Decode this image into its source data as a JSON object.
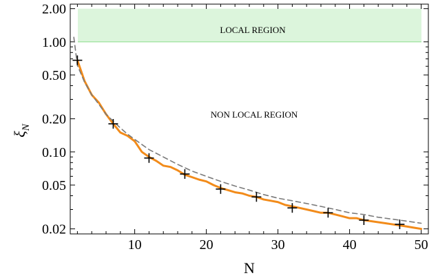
{
  "chart_data": {
    "type": "line",
    "title": "",
    "xlabel": "N",
    "ylabel_symbol": "ξ",
    "ylabel_subscript": "N",
    "x_scale": "linear",
    "y_scale": "log",
    "xlim": [
      1,
      51
    ],
    "ylim": [
      0.018,
      2.2
    ],
    "x_ticks": [
      10,
      20,
      30,
      40,
      50
    ],
    "y_ticks": [
      0.02,
      0.05,
      0.1,
      0.2,
      0.5,
      1.0,
      2.0
    ],
    "y_tick_labels": [
      "0.02",
      "0.05",
      "0.10",
      "0.20",
      "0.50",
      "1.00",
      "2.00"
    ],
    "x_tick_labels": [
      "10",
      "20",
      "30",
      "40",
      "50"
    ],
    "regions": [
      {
        "label": "LOCAL REGION",
        "y_from": 1.0,
        "y_to": 2.0,
        "color": "#dcf5dc",
        "edge_color": "#a8e6a8"
      },
      {
        "label": "NON LOCAL REGION",
        "y_from": 0.018,
        "y_to": 1.0
      }
    ],
    "series": [
      {
        "style": "solid",
        "color": "#f28b1a",
        "x": [
          2,
          3,
          4,
          5,
          6,
          7,
          8,
          9,
          10,
          11,
          12,
          13,
          14,
          15,
          16,
          17,
          18,
          19,
          20,
          21,
          22,
          23,
          24,
          25,
          26,
          27,
          28,
          29,
          30,
          31,
          32,
          33,
          34,
          35,
          36,
          37,
          38,
          39,
          40,
          41,
          42,
          43,
          44,
          45,
          46,
          47,
          48,
          49,
          50
        ],
        "y": [
          0.68,
          0.44,
          0.33,
          0.28,
          0.22,
          0.18,
          0.15,
          0.14,
          0.125,
          0.1,
          0.09,
          0.083,
          0.075,
          0.073,
          0.068,
          0.062,
          0.059,
          0.056,
          0.054,
          0.05,
          0.047,
          0.045,
          0.043,
          0.042,
          0.04,
          0.039,
          0.037,
          0.036,
          0.035,
          0.033,
          0.032,
          0.031,
          0.03,
          0.029,
          0.028,
          0.028,
          0.027,
          0.026,
          0.025,
          0.025,
          0.024,
          0.0235,
          0.023,
          0.0225,
          0.022,
          0.0215,
          0.021,
          0.0205,
          0.02
        ]
      },
      {
        "style": "dashed",
        "color": "#7a7a7a",
        "x": [
          1.5,
          2,
          3,
          4,
          5,
          6,
          7,
          8,
          9,
          10,
          12,
          14,
          16,
          18,
          20,
          22,
          24,
          26,
          28,
          30,
          32,
          34,
          36,
          38,
          40,
          42,
          44,
          46,
          48,
          50
        ],
        "y": [
          1.1,
          0.61,
          0.43,
          0.33,
          0.27,
          0.22,
          0.19,
          0.165,
          0.145,
          0.13,
          0.105,
          0.09,
          0.077,
          0.067,
          0.06,
          0.054,
          0.049,
          0.045,
          0.041,
          0.038,
          0.036,
          0.034,
          0.032,
          0.03,
          0.028,
          0.027,
          0.0255,
          0.0245,
          0.0235,
          0.0225
        ]
      },
      {
        "style": "markers",
        "marker": "+",
        "color": "#000000",
        "x": [
          2,
          7,
          12,
          17,
          22,
          27,
          32,
          37,
          42,
          47
        ],
        "y": [
          0.68,
          0.18,
          0.088,
          0.063,
          0.046,
          0.039,
          0.031,
          0.028,
          0.024,
          0.022
        ]
      }
    ]
  }
}
